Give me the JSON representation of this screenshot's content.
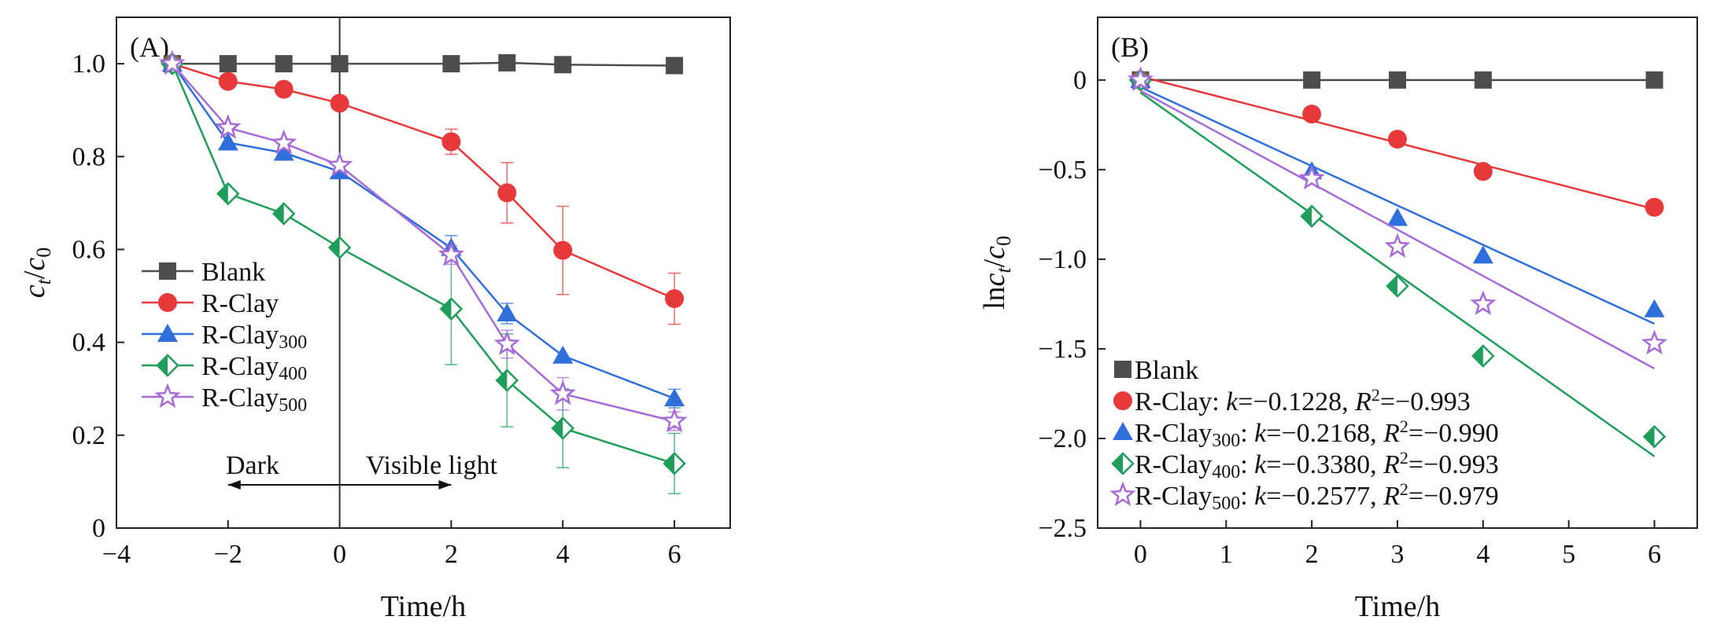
{
  "chart_data": [
    {
      "panel": "(A)",
      "type": "line",
      "xlabel": "Time/h",
      "ylabel": "ct/c0",
      "xlim": [
        -4,
        7
      ],
      "ylim": [
        0,
        1.1
      ],
      "xticks": [
        -4,
        -2,
        0,
        2,
        4,
        6
      ],
      "yticks": [
        "0",
        "0.2",
        "0.4",
        "0.6",
        "0.8",
        "1.0"
      ],
      "x": [
        -3,
        -2,
        -1,
        0,
        2,
        3,
        4,
        6
      ],
      "annotations": {
        "dark": "Dark",
        "visible": "Visible light"
      },
      "series": [
        {
          "name": "Blank",
          "marker": "square",
          "color": "#4d4d4d",
          "values": [
            1.0,
            1.0,
            1.0,
            1.0,
            1.0,
            1.002,
            0.998,
            0.996
          ],
          "errors": [
            0,
            0,
            0,
            0,
            0,
            0,
            0,
            0
          ]
        },
        {
          "name": "R-Clay",
          "marker": "circle",
          "color": "#e8393a",
          "values": [
            1.0,
            0.962,
            0.945,
            0.915,
            0.832,
            0.722,
            0.598,
            0.494
          ],
          "errors": [
            0,
            0,
            0,
            0,
            0.027,
            0.065,
            0.095,
            0.055
          ]
        },
        {
          "name": "R-Clay",
          "sub": "300",
          "marker": "triangle",
          "color": "#2f6fdb",
          "values": [
            1.0,
            0.83,
            0.808,
            0.768,
            0.603,
            0.462,
            0.371,
            0.279
          ],
          "errors": [
            0,
            0,
            0,
            0,
            0.027,
            0.022,
            0,
            0.02
          ]
        },
        {
          "name": "R-Clay",
          "sub": "400",
          "marker": "diamond",
          "color": "#1e9e5a",
          "values": [
            1.0,
            0.72,
            0.677,
            0.604,
            0.472,
            0.318,
            0.215,
            0.139
          ],
          "errors": [
            0,
            0,
            0,
            0,
            0.12,
            0.1,
            0.085,
            0.065
          ]
        },
        {
          "name": "R-Clay",
          "sub": "500",
          "marker": "star",
          "color": "#a66bd8",
          "values": [
            1.0,
            0.862,
            0.829,
            0.781,
            0.588,
            0.396,
            0.289,
            0.23
          ],
          "errors": [
            0,
            0,
            0,
            0,
            0.02,
            0.03,
            0.035,
            0.02
          ]
        }
      ]
    },
    {
      "panel": "(B)",
      "type": "scatter",
      "xlabel": "Time/h",
      "ylabel": "lnct/c0",
      "xlim": [
        -0.5,
        6.5
      ],
      "ylim": [
        -2.5,
        0.35
      ],
      "xticks": [
        0,
        1,
        2,
        3,
        4,
        5,
        6
      ],
      "yticks": [
        "0",
        "−0.5",
        "−1.0",
        "−1.5",
        "−2.0",
        "−2.5"
      ],
      "x": [
        0,
        2,
        3,
        4,
        6
      ],
      "series": [
        {
          "name": "Blank",
          "marker": "square",
          "color": "#4d4d4d",
          "values": [
            0,
            0,
            0,
            0,
            0
          ],
          "fit": [
            0,
            0
          ],
          "k": "",
          "r2": ""
        },
        {
          "name": "R-Clay",
          "marker": "circle",
          "color": "#e8393a",
          "values": [
            0,
            -0.19,
            -0.33,
            -0.51,
            -0.71
          ],
          "fit": [
            0.02,
            -0.72
          ],
          "k": "−0.1228",
          "r2": "−0.993"
        },
        {
          "name": "R-Clay",
          "sub": "300",
          "marker": "triangle",
          "color": "#2f6fdb",
          "values": [
            0,
            -0.51,
            -0.77,
            -0.98,
            -1.28
          ],
          "fit": [
            -0.04,
            -1.36
          ],
          "k": "−0.2168",
          "r2": "−0.990"
        },
        {
          "name": "R-Clay",
          "sub": "400",
          "marker": "diamond",
          "color": "#1e9e5a",
          "values": [
            0,
            -0.76,
            -1.15,
            -1.54,
            -1.99
          ],
          "fit": [
            -0.07,
            -2.1
          ],
          "k": "−0.3380",
          "r2": "−0.993"
        },
        {
          "name": "R-Clay",
          "sub": "500",
          "marker": "star",
          "color": "#a66bd8",
          "values": [
            0,
            -0.55,
            -0.93,
            -1.25,
            -1.47
          ],
          "fit": [
            -0.06,
            -1.61
          ],
          "k": "−0.2577",
          "r2": "−0.979"
        }
      ]
    }
  ]
}
